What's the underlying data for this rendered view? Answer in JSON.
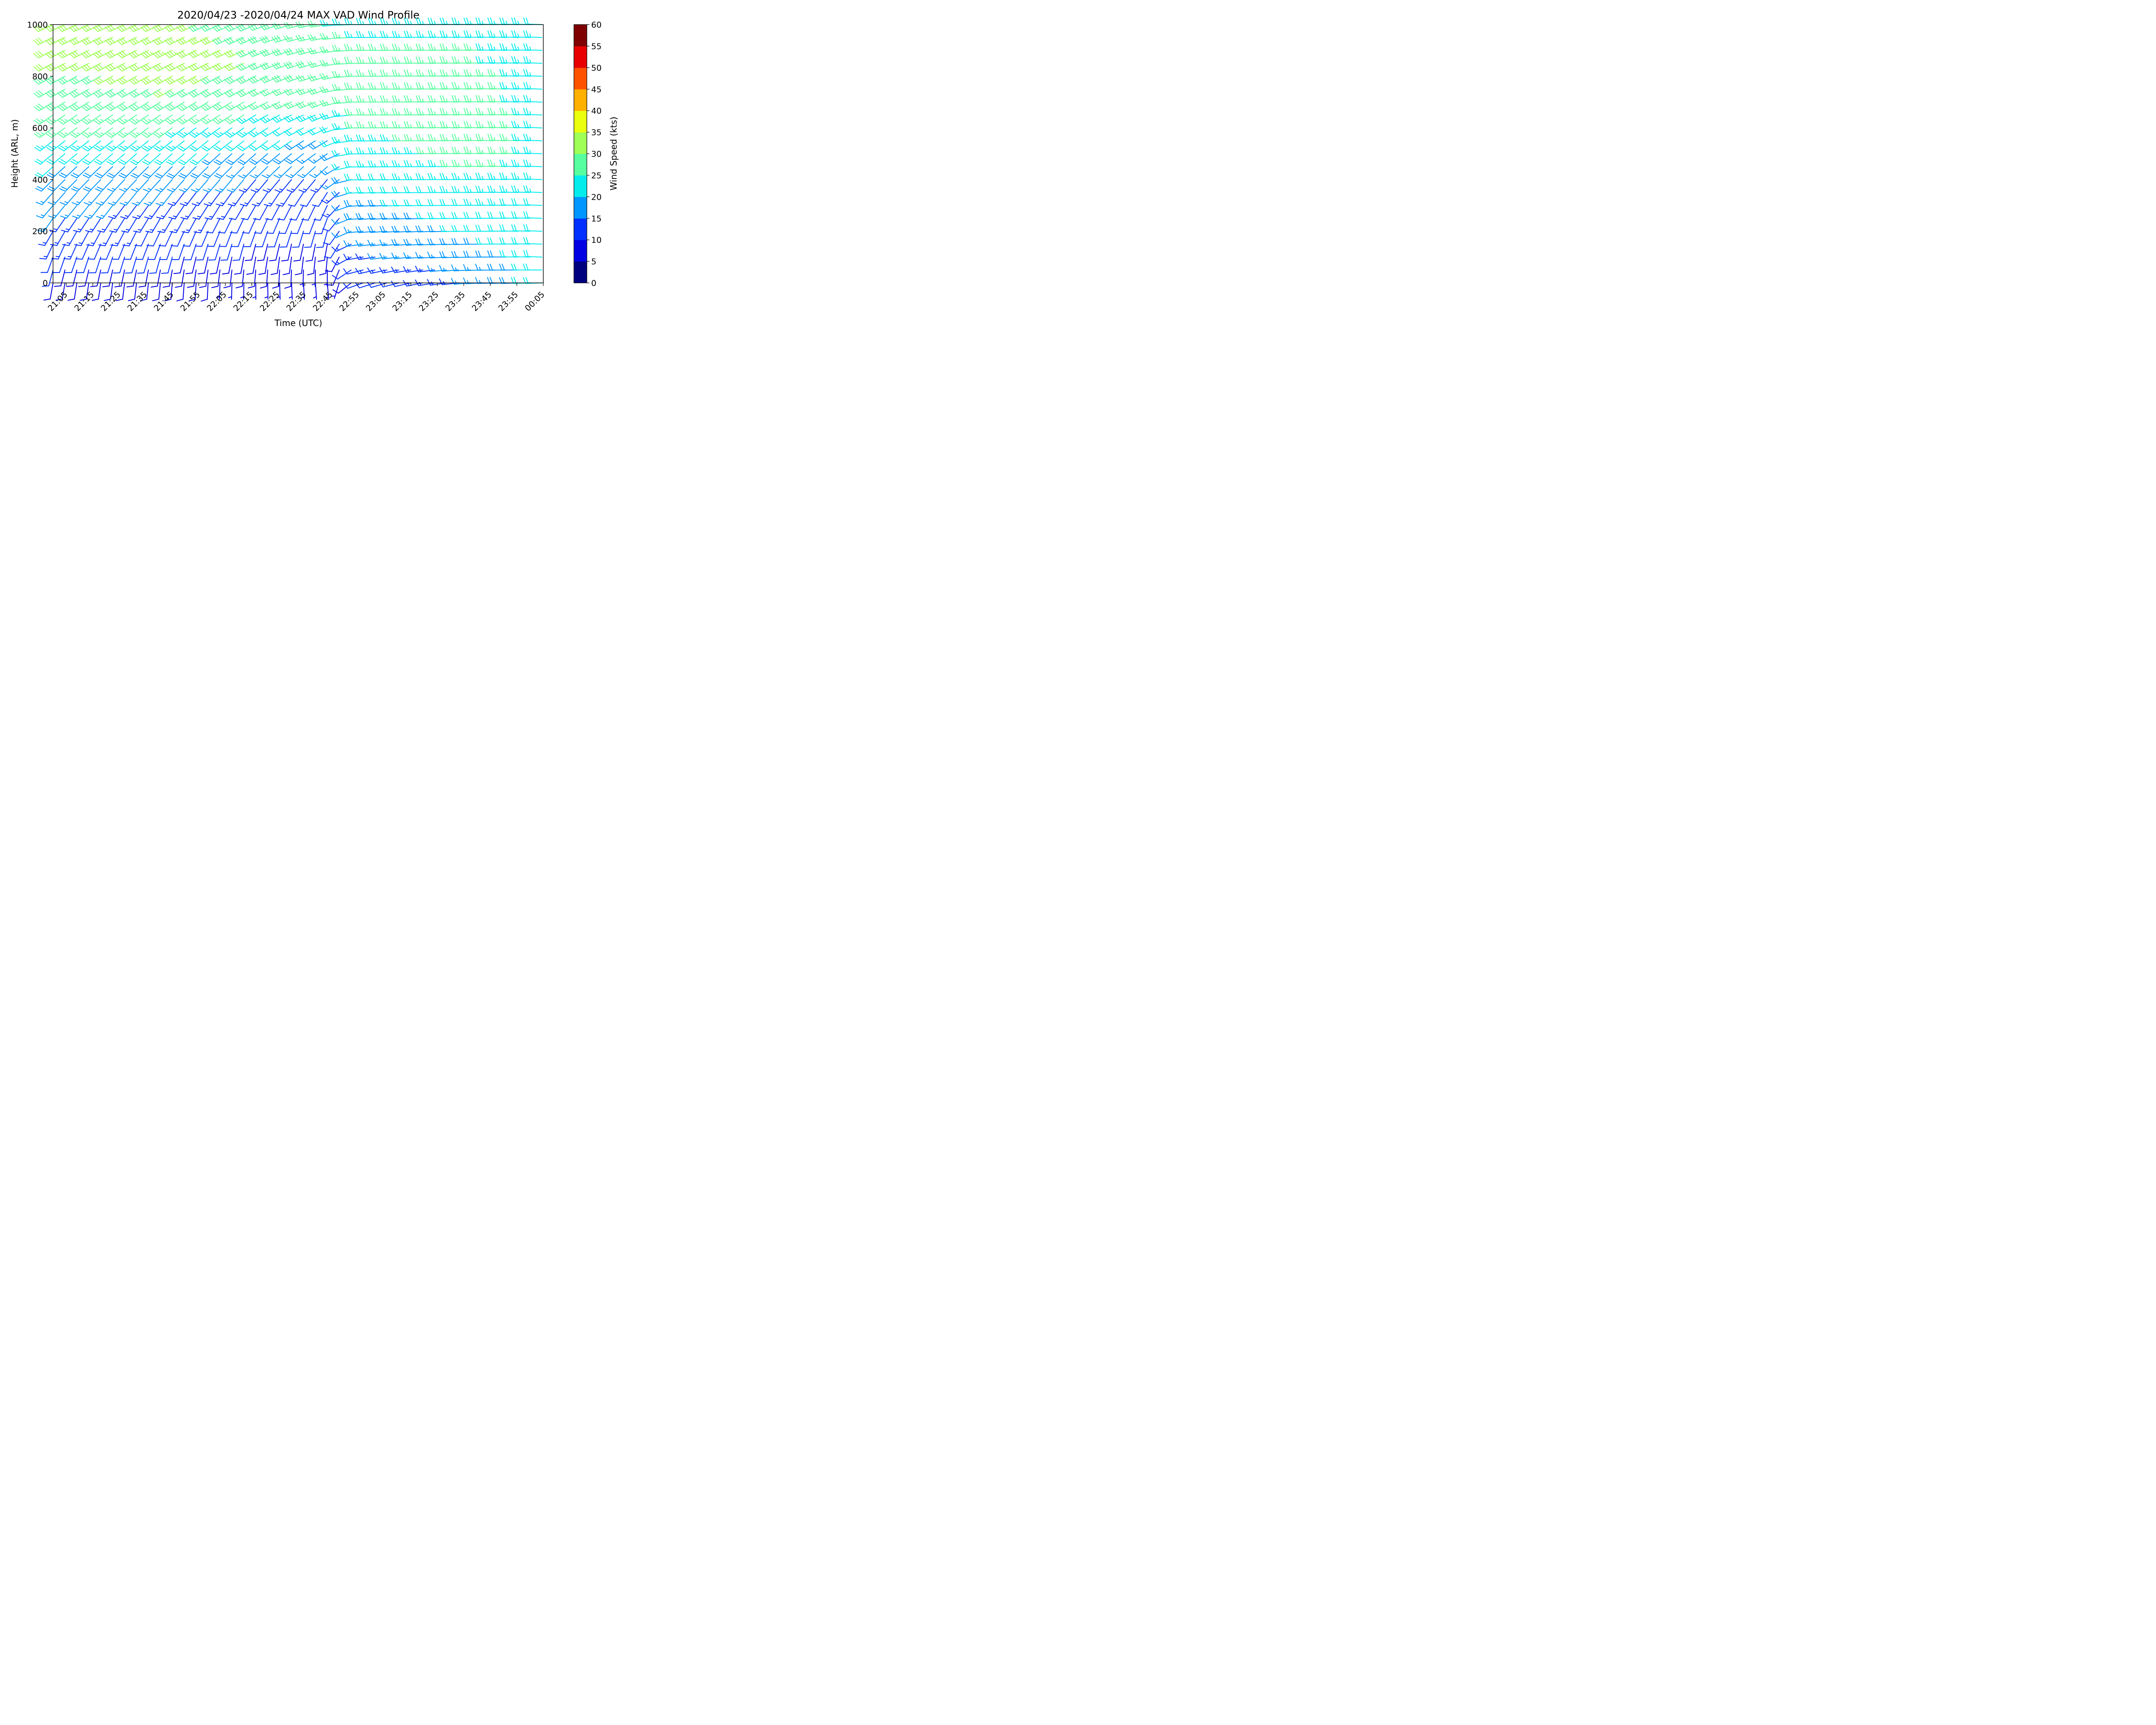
{
  "chart_data": {
    "type": "wind-barb",
    "title": "2020/04/23 -2020/04/24 MAX VAD Wind Profile",
    "xlabel": "Time (UTC)",
    "ylabel": "Height (ARL, m)",
    "x_unit": "UTC time",
    "y_unit": "m",
    "xlim": [
      "21:00",
      "00:05"
    ],
    "ylim": [
      0,
      1000
    ],
    "x_ticks": [
      "21:05",
      "21:15",
      "21:25",
      "21:35",
      "21:45",
      "21:55",
      "22:05",
      "22:15",
      "22:25",
      "22:35",
      "22:45",
      "22:55",
      "23:05",
      "23:15",
      "23:25",
      "23:35",
      "23:45",
      "23:55",
      "00:05"
    ],
    "y_ticks": [
      0,
      200,
      400,
      600,
      800,
      1000
    ],
    "heights_m": [
      0,
      50,
      100,
      150,
      200,
      250,
      300,
      350,
      400,
      450,
      500,
      550,
      600,
      650,
      700,
      750,
      800,
      850,
      900,
      950,
      1000
    ],
    "profile_interval_min": 4.5,
    "profiles": [
      {
        "time": "21:00",
        "speed_kts": [
          8,
          10,
          12,
          13,
          14,
          15,
          16,
          17,
          18,
          20,
          22,
          24,
          26,
          27,
          28,
          29,
          29,
          30,
          30,
          30,
          30
        ],
        "dir_deg": [
          190,
          195,
          200,
          205,
          210,
          215,
          220,
          222,
          225,
          228,
          230,
          232,
          234,
          236,
          238,
          240,
          241,
          242,
          243,
          244,
          245
        ]
      },
      {
        "time": "21:45",
        "speed_kts": [
          8,
          9,
          10,
          11,
          12,
          13,
          14,
          15,
          17,
          19,
          21,
          23,
          25,
          27,
          29,
          30,
          31,
          32,
          33,
          32,
          31
        ],
        "dir_deg": [
          185,
          190,
          195,
          200,
          205,
          210,
          215,
          218,
          222,
          225,
          228,
          231,
          234,
          236,
          238,
          240,
          241,
          242,
          243,
          244,
          245
        ]
      },
      {
        "time": "22:15",
        "speed_kts": [
          7,
          8,
          9,
          10,
          11,
          12,
          12,
          13,
          15,
          17,
          19,
          21,
          23,
          25,
          27,
          28,
          29,
          30,
          30,
          29,
          28
        ],
        "dir_deg": [
          180,
          185,
          190,
          195,
          200,
          205,
          210,
          215,
          220,
          225,
          228,
          232,
          235,
          238,
          240,
          242,
          243,
          244,
          245,
          246,
          246
        ]
      },
      {
        "time": "22:45",
        "speed_kts": [
          6,
          7,
          8,
          9,
          10,
          10,
          11,
          12,
          13,
          15,
          17,
          19,
          21,
          23,
          25,
          26,
          27,
          27,
          27,
          26,
          25
        ],
        "dir_deg": [
          175,
          180,
          185,
          190,
          195,
          200,
          205,
          212,
          220,
          228,
          235,
          240,
          245,
          248,
          250,
          252,
          254,
          256,
          258,
          260,
          262
        ]
      },
      {
        "time": "22:55",
        "speed_kts": [
          10,
          12,
          14,
          16,
          17,
          18,
          19,
          20,
          21,
          22,
          23,
          24,
          25,
          25,
          26,
          26,
          26,
          26,
          25,
          25,
          24
        ],
        "dir_deg": [
          250,
          255,
          260,
          262,
          264,
          265,
          266,
          267,
          268,
          268,
          269,
          269,
          270,
          270,
          270,
          270,
          270,
          270,
          270,
          270,
          270
        ]
      },
      {
        "time": "23:45",
        "speed_kts": [
          16,
          17,
          19,
          20,
          21,
          22,
          23,
          24,
          25,
          26,
          27,
          27,
          27,
          27,
          26,
          26,
          26,
          25,
          25,
          24,
          24
        ],
        "dir_deg": [
          268,
          269,
          270,
          270,
          270,
          270,
          271,
          271,
          271,
          272,
          272,
          272,
          272,
          272,
          272,
          272,
          272,
          272,
          272,
          272,
          272
        ]
      },
      {
        "time": "00:05",
        "speed_kts": [
          22,
          22,
          21,
          21,
          22,
          22,
          22,
          23,
          23,
          24,
          24,
          24,
          24,
          24,
          24,
          23,
          23,
          23,
          23,
          23,
          22
        ],
        "dir_deg": [
          268,
          270,
          272,
          272,
          272,
          272,
          272,
          272,
          272,
          272,
          272,
          272,
          272,
          272,
          272,
          272,
          272,
          272,
          272,
          272,
          272
        ]
      }
    ],
    "colorbar": {
      "label": "Wind Speed (kts)",
      "ticks": [
        0,
        5,
        10,
        15,
        20,
        25,
        30,
        35,
        40,
        45,
        50,
        55,
        60
      ],
      "bins": [
        {
          "min": 0,
          "max": 5,
          "color": "#00007f"
        },
        {
          "min": 5,
          "max": 10,
          "color": "#0000e3"
        },
        {
          "min": 10,
          "max": 15,
          "color": "#0030ff"
        },
        {
          "min": 15,
          "max": 20,
          "color": "#0096ff"
        },
        {
          "min": 20,
          "max": 25,
          "color": "#05eced"
        },
        {
          "min": 25,
          "max": 30,
          "color": "#56ff9f"
        },
        {
          "min": 30,
          "max": 35,
          "color": "#9fff56"
        },
        {
          "min": 35,
          "max": 40,
          "color": "#eaff0d"
        },
        {
          "min": 40,
          "max": 45,
          "color": "#ffb000"
        },
        {
          "min": 45,
          "max": 50,
          "color": "#ff5200"
        },
        {
          "min": 50,
          "max": 55,
          "color": "#e80000"
        },
        {
          "min": 55,
          "max": 60,
          "color": "#7f0000"
        }
      ]
    }
  }
}
